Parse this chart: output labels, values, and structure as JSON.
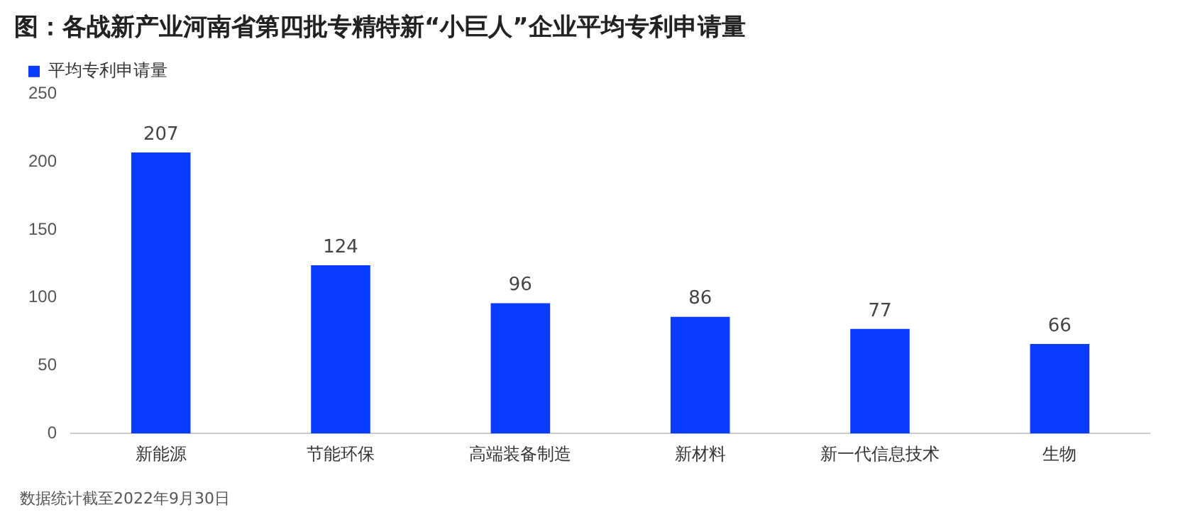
{
  "chart_data": {
    "type": "bar",
    "title": "图：各战新产业河南省第四批专精特新“小巨人”企业平均专利申请量",
    "categories": [
      "新能源",
      "节能环保",
      "高端装备制造",
      "新材料",
      "新一代信息技术",
      "生物"
    ],
    "series": [
      {
        "name": "平均专利申请量",
        "color": "#0a3cff",
        "values": [
          207,
          124,
          96,
          86,
          77,
          66
        ]
      }
    ],
    "ylim": [
      0,
      250
    ],
    "yticks": [
      0,
      50,
      100,
      150,
      200,
      250
    ],
    "grid": false,
    "legend": "top left",
    "data_labels": true,
    "annotations": [
      "数据统计截至2022年9月30日"
    ]
  }
}
